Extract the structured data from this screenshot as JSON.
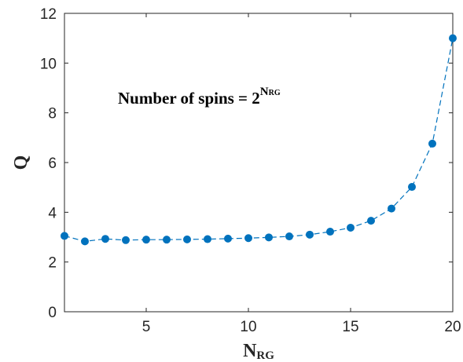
{
  "chart_data": {
    "type": "line",
    "x": [
      1,
      2,
      3,
      4,
      5,
      6,
      7,
      8,
      9,
      10,
      11,
      12,
      13,
      14,
      15,
      16,
      17,
      18,
      19,
      20
    ],
    "series": [
      {
        "values": [
          3.05,
          2.83,
          2.93,
          2.88,
          2.9,
          2.9,
          2.91,
          2.92,
          2.94,
          2.96,
          2.99,
          3.03,
          3.1,
          3.22,
          3.38,
          3.66,
          4.15,
          5.02,
          6.76,
          11.0
        ],
        "color": "#0072BD",
        "line_style": "dashed",
        "marker": "circle"
      }
    ],
    "xlim": [
      1,
      20
    ],
    "ylim": [
      0,
      12
    ],
    "xticks": [
      5,
      10,
      15,
      20
    ],
    "yticks": [
      0,
      2,
      4,
      6,
      8,
      10,
      12
    ],
    "xlabel": {
      "main": "N",
      "sub": "RG"
    },
    "ylabel": "Q",
    "annotation": {
      "text": "Number of spins = 2",
      "sup": "N",
      "sup_sub": "RG"
    },
    "grid": false,
    "legend": "none"
  }
}
